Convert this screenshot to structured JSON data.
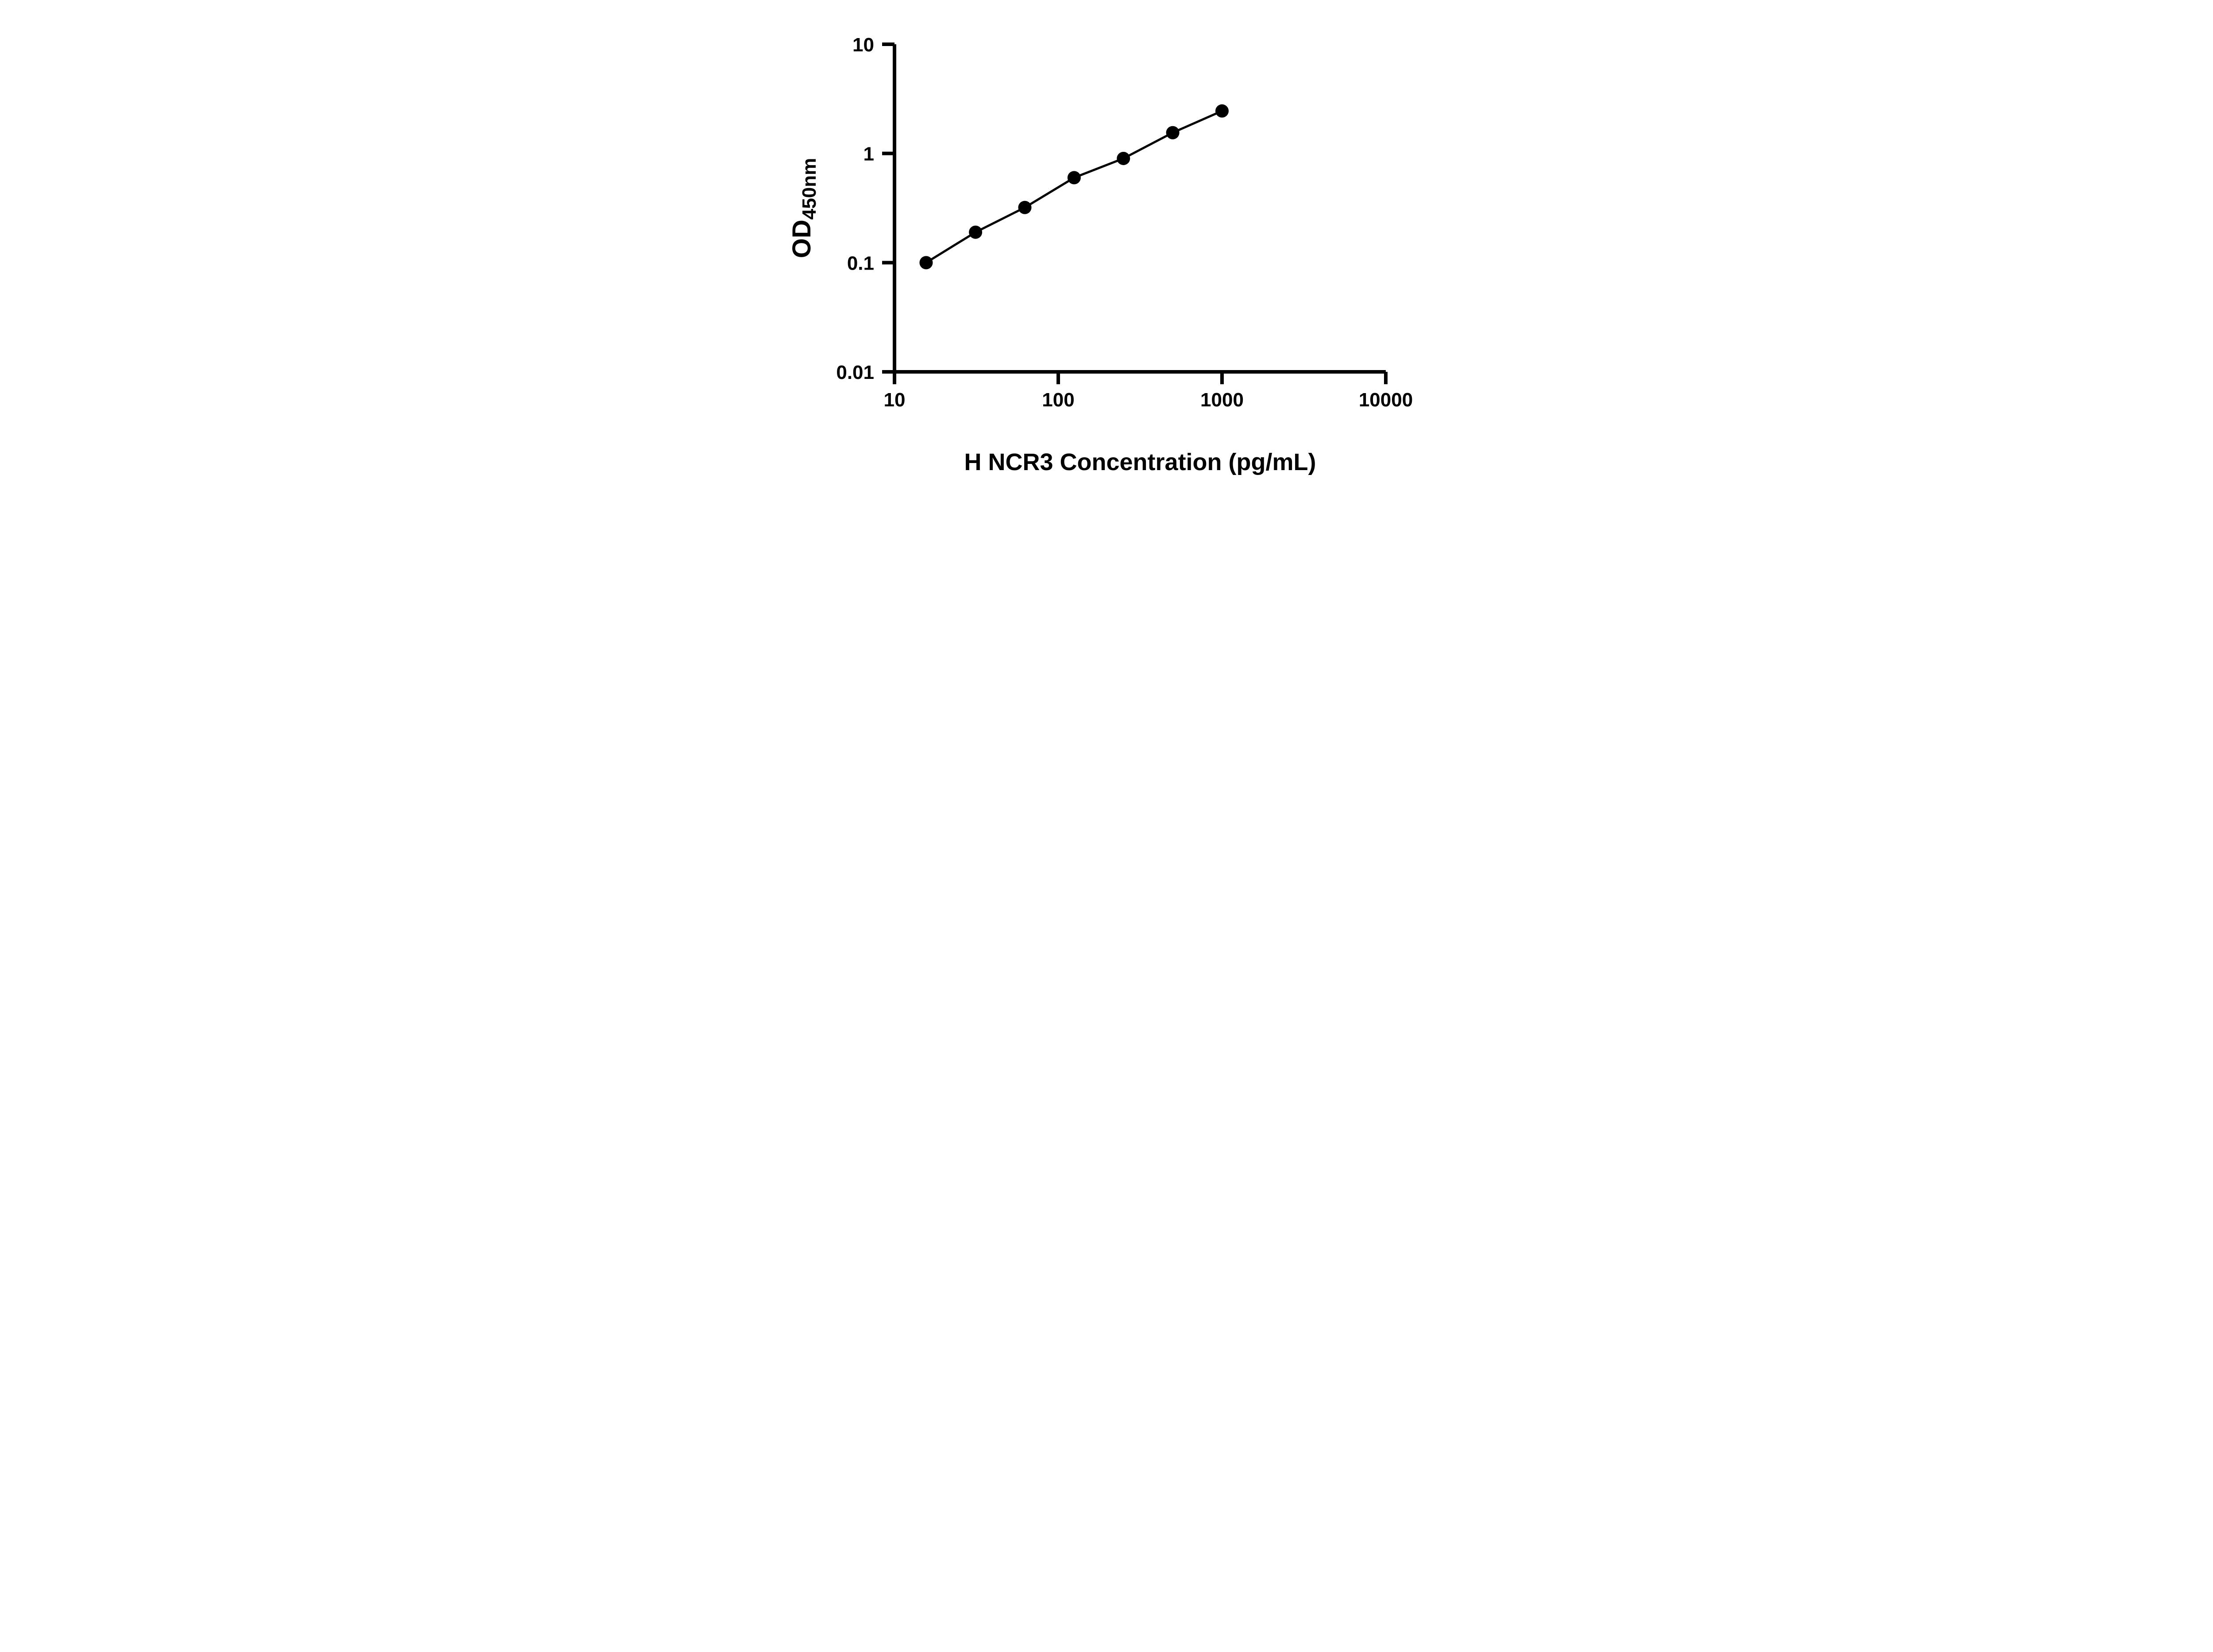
{
  "chart_data": {
    "type": "scatter",
    "subtype": "log-log standard curve with connecting line",
    "x": [
      15.6,
      31.25,
      62.5,
      125,
      250,
      500,
      1000
    ],
    "y": [
      0.1,
      0.19,
      0.32,
      0.6,
      0.9,
      1.55,
      2.45
    ],
    "title": "",
    "xlabel": "H NCR3 Concentration (pg/mL)",
    "ylabel_main": "OD",
    "ylabel_sub": "450nm",
    "x_scale": "log",
    "y_scale": "log",
    "xlim": [
      10,
      10000
    ],
    "ylim": [
      0.01,
      10
    ],
    "x_ticks": [
      {
        "value": 10,
        "label": "10"
      },
      {
        "value": 100,
        "label": "100"
      },
      {
        "value": 1000,
        "label": "1000"
      },
      {
        "value": 10000,
        "label": "10000"
      }
    ],
    "y_ticks": [
      {
        "value": 10,
        "label": "10"
      },
      {
        "value": 1,
        "label": "1"
      },
      {
        "value": 0.1,
        "label": "0.1"
      },
      {
        "value": 0.01,
        "label": "0.01"
      }
    ],
    "grid": "off",
    "legend": "none",
    "marker_color": "#000000",
    "line_color": "#000000",
    "axis_color": "#000000",
    "background": "#ffffff",
    "marker_radius": 15,
    "line_width": 5,
    "axis_width": 8,
    "tick_length": 28
  }
}
